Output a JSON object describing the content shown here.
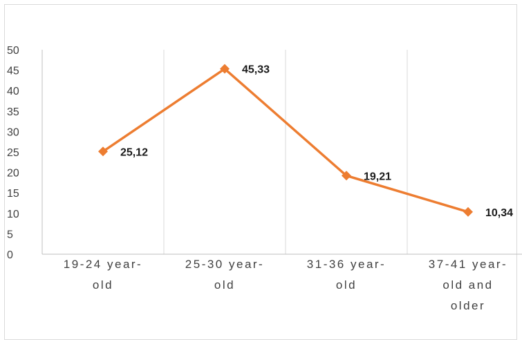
{
  "chart_data": {
    "type": "line",
    "categories": [
      [
        "19-24 year-",
        "old"
      ],
      [
        "25-30 year-",
        "old"
      ],
      [
        "31-36 year-",
        "old"
      ],
      [
        "37-41 year-",
        "old and",
        "older"
      ]
    ],
    "values": [
      25.12,
      45.33,
      19.21,
      10.34
    ],
    "data_labels": [
      "25,12",
      "45,33",
      "19,21",
      "10,34"
    ],
    "yticks": [
      "0",
      "5",
      "10",
      "15",
      "20",
      "25",
      "30",
      "35",
      "40",
      "45",
      "50"
    ],
    "ylim": [
      0,
      50
    ],
    "xlabel": "",
    "ylabel": "",
    "title": "",
    "grid": "vertical",
    "line_color": "#ED7D31",
    "grid_color": "#d9d9d9",
    "axis_color": "#bfbfbf",
    "marker": "diamond"
  }
}
